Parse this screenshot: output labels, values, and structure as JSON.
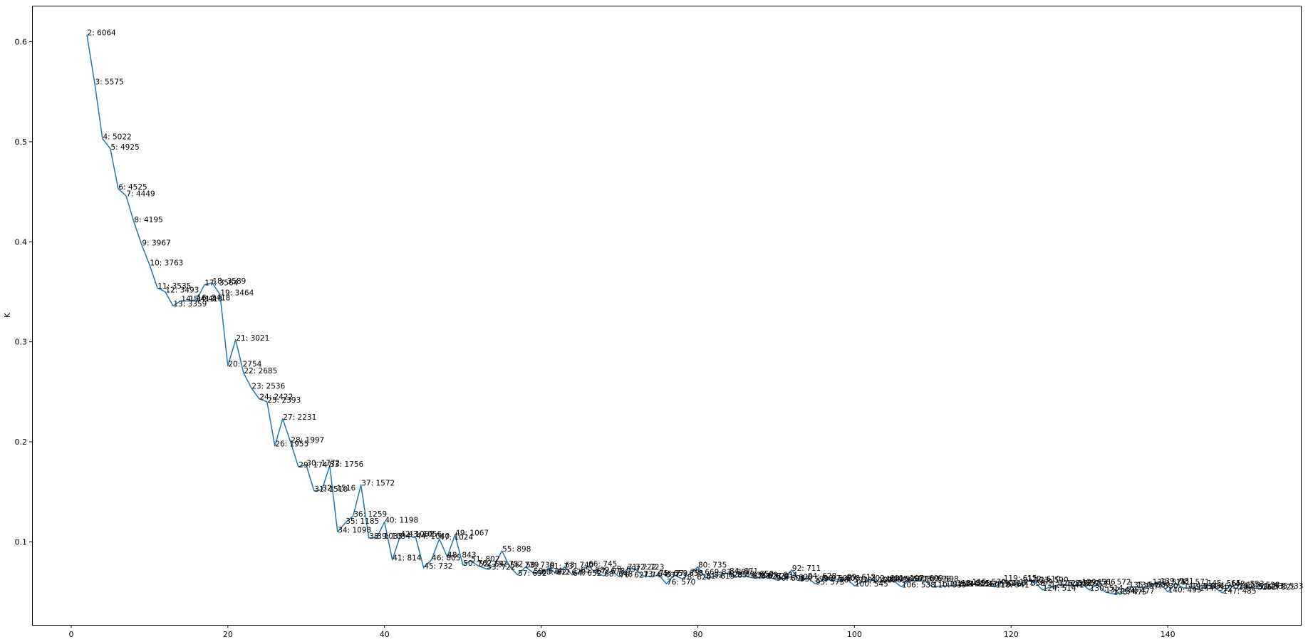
{
  "chart_data": {
    "type": "line",
    "title": "",
    "xlabel": "",
    "ylabel": "K",
    "xlim": [
      -5,
      157
    ],
    "ylim": [
      0.017,
      0.636
    ],
    "xticks": [
      0,
      20,
      40,
      60,
      80,
      100,
      120,
      140
    ],
    "yticks": [
      0.1,
      0.2,
      0.3,
      0.4,
      0.5,
      0.6
    ],
    "grid": false,
    "line_color": "#1f77b4",
    "label_format": "{x}: {n}",
    "points": [
      {
        "x": 2,
        "y": 0.607,
        "n": 6064
      },
      {
        "x": 3,
        "y": 0.558,
        "n": 5575
      },
      {
        "x": 4,
        "y": 0.503,
        "n": 5022
      },
      {
        "x": 5,
        "y": 0.493,
        "n": 4925
      },
      {
        "x": 6,
        "y": 0.453,
        "n": 4525
      },
      {
        "x": 7,
        "y": 0.446,
        "n": 4449
      },
      {
        "x": 8,
        "y": 0.42,
        "n": 4195
      },
      {
        "x": 9,
        "y": 0.397,
        "n": 3967
      },
      {
        "x": 10,
        "y": 0.377,
        "n": 3763
      },
      {
        "x": 11,
        "y": 0.354,
        "n": 3535
      },
      {
        "x": 12,
        "y": 0.35,
        "n": 3493
      },
      {
        "x": 13,
        "y": 0.336,
        "n": 3359
      },
      {
        "x": 14,
        "y": 0.341,
        "n": 3413
      },
      {
        "x": 15,
        "y": 0.341,
        "n": 3410
      },
      {
        "x": 16,
        "y": 0.342,
        "n": 3418
      },
      {
        "x": 17,
        "y": 0.357,
        "n": 3564
      },
      {
        "x": 18,
        "y": 0.359,
        "n": 3589
      },
      {
        "x": 19,
        "y": 0.347,
        "n": 3464
      },
      {
        "x": 20,
        "y": 0.276,
        "n": 2754
      },
      {
        "x": 21,
        "y": 0.302,
        "n": 3021
      },
      {
        "x": 22,
        "y": 0.269,
        "n": 2685
      },
      {
        "x": 23,
        "y": 0.254,
        "n": 2536
      },
      {
        "x": 24,
        "y": 0.243,
        "n": 2422
      },
      {
        "x": 25,
        "y": 0.24,
        "n": 2393
      },
      {
        "x": 26,
        "y": 0.196,
        "n": 1955
      },
      {
        "x": 27,
        "y": 0.223,
        "n": 2231
      },
      {
        "x": 28,
        "y": 0.2,
        "n": 1997
      },
      {
        "x": 29,
        "y": 0.175,
        "n": 1747
      },
      {
        "x": 30,
        "y": 0.177,
        "n": 1772
      },
      {
        "x": 31,
        "y": 0.151,
        "n": 1510
      },
      {
        "x": 32,
        "y": 0.152,
        "n": 1516
      },
      {
        "x": 33,
        "y": 0.176,
        "n": 1756
      },
      {
        "x": 34,
        "y": 0.11,
        "n": 1098
      },
      {
        "x": 35,
        "y": 0.119,
        "n": 1185
      },
      {
        "x": 36,
        "y": 0.126,
        "n": 1259
      },
      {
        "x": 37,
        "y": 0.157,
        "n": 1572
      },
      {
        "x": 38,
        "y": 0.104,
        "n": 1035
      },
      {
        "x": 39,
        "y": 0.104,
        "n": 1034
      },
      {
        "x": 40,
        "y": 0.12,
        "n": 1198
      },
      {
        "x": 41,
        "y": 0.082,
        "n": 814
      },
      {
        "x": 42,
        "y": 0.106,
        "n": 1060
      },
      {
        "x": 43,
        "y": 0.106,
        "n": 1056
      },
      {
        "x": 44,
        "y": 0.104,
        "n": 1040
      },
      {
        "x": 45,
        "y": 0.074,
        "n": 732
      },
      {
        "x": 46,
        "y": 0.082,
        "n": 805
      },
      {
        "x": 47,
        "y": 0.103,
        "n": 1024
      },
      {
        "x": 48,
        "y": 0.085,
        "n": 843
      },
      {
        "x": 49,
        "y": 0.107,
        "n": 1067
      },
      {
        "x": 50,
        "y": 0.077,
        "n": 762
      },
      {
        "x": 51,
        "y": 0.081,
        "n": 802
      },
      {
        "x": 52,
        "y": 0.076,
        "n": 752
      },
      {
        "x": 53,
        "y": 0.073,
        "n": 722
      },
      {
        "x": 54,
        "y": 0.076,
        "n": 752
      },
      {
        "x": 55,
        "y": 0.091,
        "n": 898
      },
      {
        "x": 56,
        "y": 0.075,
        "n": 739
      },
      {
        "x": 57,
        "y": 0.067,
        "n": 652
      },
      {
        "x": 58,
        "y": 0.075,
        "n": 739
      },
      {
        "x": 59,
        "y": 0.069,
        "n": 674
      },
      {
        "x": 60,
        "y": 0.068,
        "n": 672
      },
      {
        "x": 61,
        "y": 0.074,
        "n": 731
      },
      {
        "x": 62,
        "y": 0.068,
        "n": 670
      },
      {
        "x": 63,
        "y": 0.075,
        "n": 740
      },
      {
        "x": 64,
        "y": 0.067,
        "n": 652
      },
      {
        "x": 65,
        "y": 0.07,
        "n": 689
      },
      {
        "x": 66,
        "y": 0.076,
        "n": 745
      },
      {
        "x": 67,
        "y": 0.069,
        "n": 678
      },
      {
        "x": 68,
        "y": 0.066,
        "n": 648
      },
      {
        "x": 69,
        "y": 0.071,
        "n": 697
      },
      {
        "x": 70,
        "y": 0.065,
        "n": 627
      },
      {
        "x": 71,
        "y": 0.073,
        "n": 722
      },
      {
        "x": 72,
        "y": 0.073,
        "n": 723
      },
      {
        "x": 73,
        "y": 0.066,
        "n": 645
      },
      {
        "x": 74,
        "y": 0.065,
        "n": 637
      },
      {
        "x": 75,
        "y": 0.067,
        "n": 659
      },
      {
        "x": 76,
        "y": 0.058,
        "n": 570
      },
      {
        "x": 77,
        "y": 0.067,
        "n": 658
      },
      {
        "x": 78,
        "y": 0.063,
        "n": 620
      },
      {
        "x": 79,
        "y": 0.068,
        "n": 669
      },
      {
        "x": 80,
        "y": 0.075,
        "n": 735
      },
      {
        "x": 81,
        "y": 0.064,
        "n": 619
      },
      {
        "x": 82,
        "y": 0.065,
        "n": 628
      },
      {
        "x": 83,
        "y": 0.068,
        "n": 667
      },
      {
        "x": 84,
        "y": 0.069,
        "n": 671
      },
      {
        "x": 85,
        "y": 0.065,
        "n": 638
      },
      {
        "x": 86,
        "y": 0.066,
        "n": 650
      },
      {
        "x": 87,
        "y": 0.064,
        "n": 627
      },
      {
        "x": 88,
        "y": 0.064,
        "n": 622
      },
      {
        "x": 89,
        "y": 0.065,
        "n": 634
      },
      {
        "x": 90,
        "y": 0.062,
        "n": 608
      },
      {
        "x": 91,
        "y": 0.063,
        "n": 620
      },
      {
        "x": 92,
        "y": 0.072,
        "n": 711
      },
      {
        "x": 93,
        "y": 0.061,
        "n": 599
      },
      {
        "x": 94,
        "y": 0.064,
        "n": 628
      },
      {
        "x": 95,
        "y": 0.058,
        "n": 573
      },
      {
        "x": 96,
        "y": 0.062,
        "n": 606
      },
      {
        "x": 97,
        "y": 0.062,
        "n": 608
      },
      {
        "x": 98,
        "y": 0.06,
        "n": 592
      },
      {
        "x": 99,
        "y": 0.063,
        "n": 612
      },
      {
        "x": 100,
        "y": 0.056,
        "n": 545
      },
      {
        "x": 101,
        "y": 0.06,
        "n": 590
      },
      {
        "x": 102,
        "y": 0.062,
        "n": 601
      },
      {
        "x": 103,
        "y": 0.06,
        "n": 586
      },
      {
        "x": 104,
        "y": 0.061,
        "n": 598
      },
      {
        "x": 105,
        "y": 0.061,
        "n": 597
      },
      {
        "x": 106,
        "y": 0.055,
        "n": 538
      },
      {
        "x": 107,
        "y": 0.062,
        "n": 609
      },
      {
        "x": 108,
        "y": 0.061,
        "n": 596
      },
      {
        "x": 109,
        "y": 0.061,
        "n": 598
      },
      {
        "x": 110,
        "y": 0.055,
        "n": 539
      },
      {
        "x": 111,
        "y": 0.056,
        "n": 544
      },
      {
        "x": 112,
        "y": 0.056,
        "n": 548
      },
      {
        "x": 113,
        "y": 0.057,
        "n": 555
      },
      {
        "x": 114,
        "y": 0.056,
        "n": 547
      },
      {
        "x": 115,
        "y": 0.058,
        "n": 570
      },
      {
        "x": 116,
        "y": 0.056,
        "n": 550
      },
      {
        "x": 117,
        "y": 0.056,
        "n": 546
      },
      {
        "x": 118,
        "y": 0.055,
        "n": 541
      },
      {
        "x": 119,
        "y": 0.062,
        "n": 615
      },
      {
        "x": 120,
        "y": 0.057,
        "n": 558
      },
      {
        "x": 121,
        "y": 0.058,
        "n": 569
      },
      {
        "x": 122,
        "y": 0.061,
        "n": 610
      },
      {
        "x": 123,
        "y": 0.06,
        "n": 590
      },
      {
        "x": 124,
        "y": 0.052,
        "n": 514
      },
      {
        "x": 125,
        "y": 0.055,
        "n": 541
      },
      {
        "x": 126,
        "y": 0.057,
        "n": 558
      },
      {
        "x": 127,
        "y": 0.057,
        "n": 557
      },
      {
        "x": 128,
        "y": 0.056,
        "n": 553
      },
      {
        "x": 129,
        "y": 0.058,
        "n": 566
      },
      {
        "x": 130,
        "y": 0.052,
        "n": 514
      },
      {
        "x": 131,
        "y": 0.058,
        "n": 572
      },
      {
        "x": 132,
        "y": 0.05,
        "n": 495
      },
      {
        "x": 133,
        "y": 0.048,
        "n": 475
      },
      {
        "x": 134,
        "y": 0.049,
        "n": 477
      },
      {
        "x": 135,
        "y": 0.055,
        "n": 543
      },
      {
        "x": 136,
        "y": 0.055,
        "n": 539
      },
      {
        "x": 137,
        "y": 0.054,
        "n": 530
      },
      {
        "x": 138,
        "y": 0.058,
        "n": 575
      },
      {
        "x": 139,
        "y": 0.059,
        "n": 581
      },
      {
        "x": 140,
        "y": 0.05,
        "n": 495
      },
      {
        "x": 141,
        "y": 0.058,
        "n": 571
      },
      {
        "x": 142,
        "y": 0.054,
        "n": 534
      },
      {
        "x": 143,
        "y": 0.054,
        "n": 531
      },
      {
        "x": 144,
        "y": 0.052,
        "n": 512
      },
      {
        "x": 145,
        "y": 0.057,
        "n": 565
      },
      {
        "x": 146,
        "y": 0.054,
        "n": 529
      },
      {
        "x": 147,
        "y": 0.049,
        "n": 485
      },
      {
        "x": 148,
        "y": 0.056,
        "n": 553
      },
      {
        "x": 149,
        "y": 0.053,
        "n": 526
      },
      {
        "x": 150,
        "y": 0.055,
        "n": 538
      },
      {
        "x": 151,
        "y": 0.054,
        "n": 535
      },
      {
        "x": 152,
        "y": 0.053,
        "n": 525
      },
      {
        "x": 153,
        "y": 0.054,
        "n": 533
      }
    ]
  }
}
